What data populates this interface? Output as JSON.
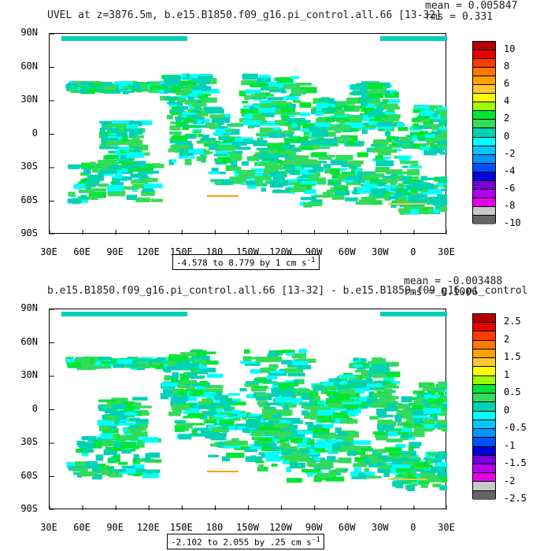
{
  "panels": [
    {
      "title": "UVEL at z=3876.5m, b.e15.B1850.f09_g16.pi_control.all.66 [13-32]",
      "stats": {
        "mean": "mean = 0.005847",
        "rms": "rms = 0.331"
      },
      "range_label": "-4.578 to 8.779 by 1 cm s",
      "range_sup": "-1",
      "colorbar_labels": [
        "10",
        "8",
        "6",
        "4",
        "2",
        "0",
        "-2",
        "-4",
        "-6",
        "-8",
        "-10"
      ]
    },
    {
      "title": "b.e15.B1850.f09_g16.pi_control.all.66 [13-32] - b.e15.B1850.f09_g16.pi_control",
      "stats": {
        "mean": "mean = -0.003488",
        "rms": "rms = 0.1006"
      },
      "range_label": "-2.102 to 2.055 by .25 cm s",
      "range_sup": "-1",
      "colorbar_labels": [
        "2.5",
        "2",
        "1.5",
        "1",
        "0.5",
        "0",
        "-0.5",
        "-1",
        "-1.5",
        "-2",
        "-2.5"
      ]
    }
  ],
  "axes": {
    "lat_labels": [
      "90N",
      "60N",
      "30N",
      "0",
      "30S",
      "60S",
      "90S"
    ],
    "lon_labels": [
      "30E",
      "60E",
      "90E",
      "120E",
      "150E",
      "180",
      "150W",
      "120W",
      "90W",
      "60W",
      "30W",
      "0",
      "30E"
    ]
  },
  "colorbar_colors": [
    "#b40000",
    "#e60000",
    "#ff3c00",
    "#ff7800",
    "#ffa000",
    "#ffc832",
    "#ffff00",
    "#a0ff00",
    "#00e632",
    "#32dc5a",
    "#00d2b4",
    "#00ffff",
    "#00c8ff",
    "#0096ff",
    "#0050ff",
    "#0000dc",
    "#7800dc",
    "#b400f0",
    "#e600e6",
    "#c8c8c8",
    "#646464"
  ],
  "chart_data": [
    {
      "type": "heatmap",
      "title": "UVEL at z=3876.5m, b.e15.B1850.f09_g16.pi_control.all.66 [13-32]",
      "x_range": [
        "30E",
        "30E"
      ],
      "y_range": [
        "90S",
        "90N"
      ],
      "mean": 0.005847,
      "rms": 0.331,
      "data_min": -4.578,
      "data_max": 8.779,
      "contour_interval": 1,
      "units": "cm s-1",
      "colorbar_ticks": [
        10,
        8,
        6,
        4,
        2,
        0,
        -2,
        -4,
        -6,
        -8,
        -10
      ]
    },
    {
      "type": "heatmap",
      "title": "b.e15.B1850.f09_g16.pi_control.all.66 [13-32] - b.e15.B1850.f09_g16.pi_control",
      "x_range": [
        "30E",
        "30E"
      ],
      "y_range": [
        "90S",
        "90N"
      ],
      "mean": -0.003488,
      "rms": 0.1006,
      "data_min": -2.102,
      "data_max": 2.055,
      "contour_interval": 0.25,
      "units": "cm s-1",
      "colorbar_ticks": [
        2.5,
        2,
        1.5,
        1,
        0.5,
        0,
        -0.5,
        -1,
        -1.5,
        -2,
        -2.5
      ]
    }
  ]
}
